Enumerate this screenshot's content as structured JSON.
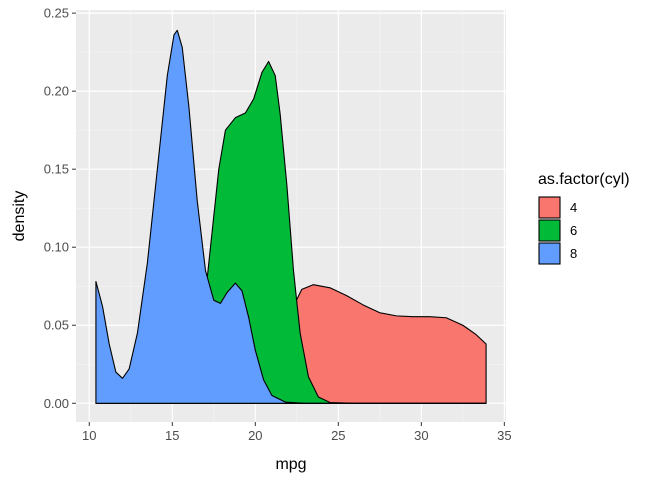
{
  "chart_data": {
    "type": "area",
    "title": "",
    "xlabel": "mpg",
    "ylabel": "density",
    "xlim": [
      9.2,
      35.1
    ],
    "ylim": [
      -0.012,
      0.252
    ],
    "x_ticks": [
      10,
      15,
      20,
      25,
      30,
      35
    ],
    "y_ticks": [
      0.0,
      0.05,
      0.1,
      0.15,
      0.2,
      0.25
    ],
    "y_tick_labels": [
      "0.00",
      "0.05",
      "0.10",
      "0.15",
      "0.20",
      "0.25"
    ],
    "grid": true,
    "background": "#ebebeb",
    "legend": {
      "title": "as.factor(cyl)",
      "position": "right"
    },
    "series": [
      {
        "name": "4",
        "color": "#f8766d",
        "points": [
          [
            10.4,
            0.0
          ],
          [
            16.0,
            0.0
          ],
          [
            17.5,
            0.0002
          ],
          [
            19.0,
            0.0015
          ],
          [
            20.0,
            0.004
          ],
          [
            21.0,
            0.012
          ],
          [
            21.8,
            0.035
          ],
          [
            22.2,
            0.06
          ],
          [
            22.8,
            0.073
          ],
          [
            23.5,
            0.076
          ],
          [
            24.5,
            0.074
          ],
          [
            25.5,
            0.069
          ],
          [
            26.5,
            0.063
          ],
          [
            27.5,
            0.058
          ],
          [
            28.5,
            0.056
          ],
          [
            29.5,
            0.0555
          ],
          [
            30.5,
            0.0555
          ],
          [
            31.5,
            0.0548
          ],
          [
            32.5,
            0.05
          ],
          [
            33.3,
            0.044
          ],
          [
            33.9,
            0.038
          ]
        ]
      },
      {
        "name": "6",
        "color": "#00ba38",
        "points": [
          [
            10.4,
            0.0
          ],
          [
            13.5,
            0.0
          ],
          [
            15.0,
            0.0005
          ],
          [
            15.8,
            0.004
          ],
          [
            16.5,
            0.025
          ],
          [
            16.9,
            0.06
          ],
          [
            17.3,
            0.1
          ],
          [
            17.8,
            0.15
          ],
          [
            18.2,
            0.175
          ],
          [
            18.8,
            0.183
          ],
          [
            19.4,
            0.186
          ],
          [
            19.9,
            0.195
          ],
          [
            20.4,
            0.212
          ],
          [
            20.8,
            0.219
          ],
          [
            21.2,
            0.21
          ],
          [
            21.5,
            0.185
          ],
          [
            21.9,
            0.14
          ],
          [
            22.3,
            0.085
          ],
          [
            22.7,
            0.045
          ],
          [
            23.2,
            0.017
          ],
          [
            23.8,
            0.004
          ],
          [
            24.5,
            0.0005
          ],
          [
            26.0,
            0.0
          ],
          [
            33.9,
            0.0
          ]
        ]
      },
      {
        "name": "8",
        "color": "#619cff",
        "points": [
          [
            10.4,
            0.0
          ],
          [
            10.4,
            0.078
          ],
          [
            10.8,
            0.062
          ],
          [
            11.2,
            0.038
          ],
          [
            11.6,
            0.02
          ],
          [
            12.0,
            0.016
          ],
          [
            12.4,
            0.022
          ],
          [
            12.9,
            0.045
          ],
          [
            13.5,
            0.09
          ],
          [
            14.1,
            0.15
          ],
          [
            14.7,
            0.21
          ],
          [
            15.1,
            0.236
          ],
          [
            15.3,
            0.239
          ],
          [
            15.6,
            0.228
          ],
          [
            16.0,
            0.19
          ],
          [
            16.5,
            0.13
          ],
          [
            17.0,
            0.085
          ],
          [
            17.5,
            0.066
          ],
          [
            17.9,
            0.064
          ],
          [
            18.3,
            0.071
          ],
          [
            18.8,
            0.077
          ],
          [
            19.2,
            0.072
          ],
          [
            19.6,
            0.055
          ],
          [
            20.0,
            0.034
          ],
          [
            20.5,
            0.015
          ],
          [
            21.0,
            0.005
          ],
          [
            21.8,
            0.0008
          ],
          [
            23.0,
            0.0
          ],
          [
            33.9,
            0.0
          ]
        ]
      }
    ]
  }
}
